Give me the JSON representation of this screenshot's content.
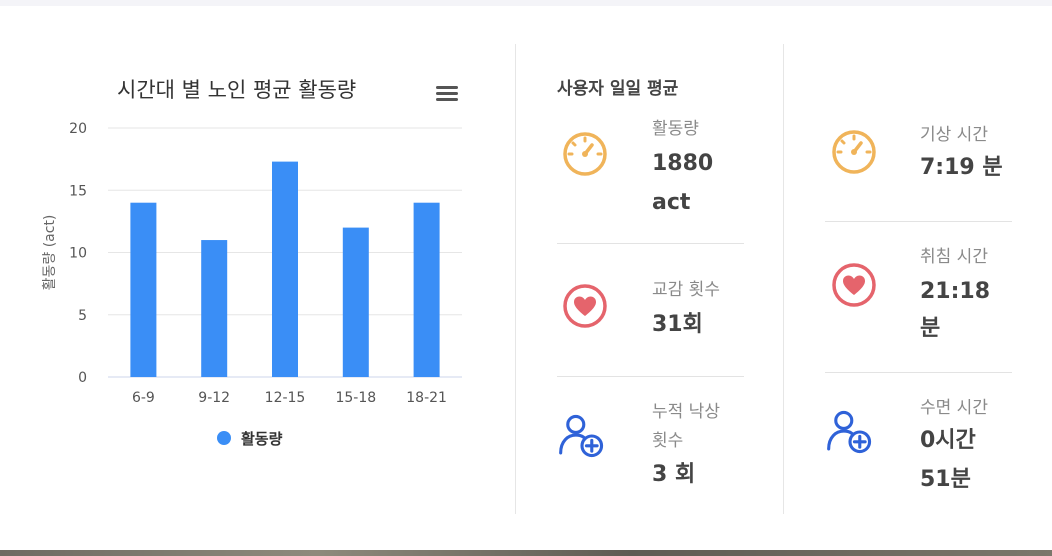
{
  "chart": {
    "menu_icon": "hamburger-menu-icon",
    "legend_color": "#3a8ef6"
  },
  "chart_data": {
    "type": "bar",
    "title": "시간대 별 노인 평균 활동량",
    "categories": [
      "6-9",
      "9-12",
      "12-15",
      "15-18",
      "18-21"
    ],
    "series": [
      {
        "name": "활동량",
        "values": [
          14,
          11,
          17.3,
          12,
          14
        ]
      }
    ],
    "ylabel": "활동량 (act)",
    "xlabel": "",
    "ylim": [
      0,
      20
    ],
    "yticks": [
      "0",
      "5",
      "10",
      "15",
      "20"
    ],
    "grid": true,
    "legend": "bottom-center",
    "color": "#3a8ef6"
  },
  "daily": {
    "title": "사용자 일일 평균",
    "activity": {
      "label": "활동량",
      "value_line1": "1880",
      "value_line2": "act",
      "icon": "gauge-icon"
    },
    "interaction": {
      "label": "교감 횟수",
      "value": "31회",
      "icon": "heart-icon"
    },
    "falls": {
      "label_line1": "누적 낙상",
      "label_line2": "횟수",
      "value": "3 회",
      "icon": "add-user-icon"
    },
    "wake": {
      "label": "기상 시간",
      "value": "7:19 분",
      "icon": "gauge-icon"
    },
    "bed": {
      "label": "취침 시간",
      "value_line1": "21:18",
      "value_line2": "분",
      "icon": "heart-icon"
    },
    "sleep": {
      "label": "수면 시간",
      "value_line1": "0시간",
      "value_line2": "51분",
      "icon": "add-user-icon"
    }
  },
  "colors": {
    "gauge": "#f0b45a",
    "heart": "#e5646c",
    "user": "#2f62d8"
  }
}
